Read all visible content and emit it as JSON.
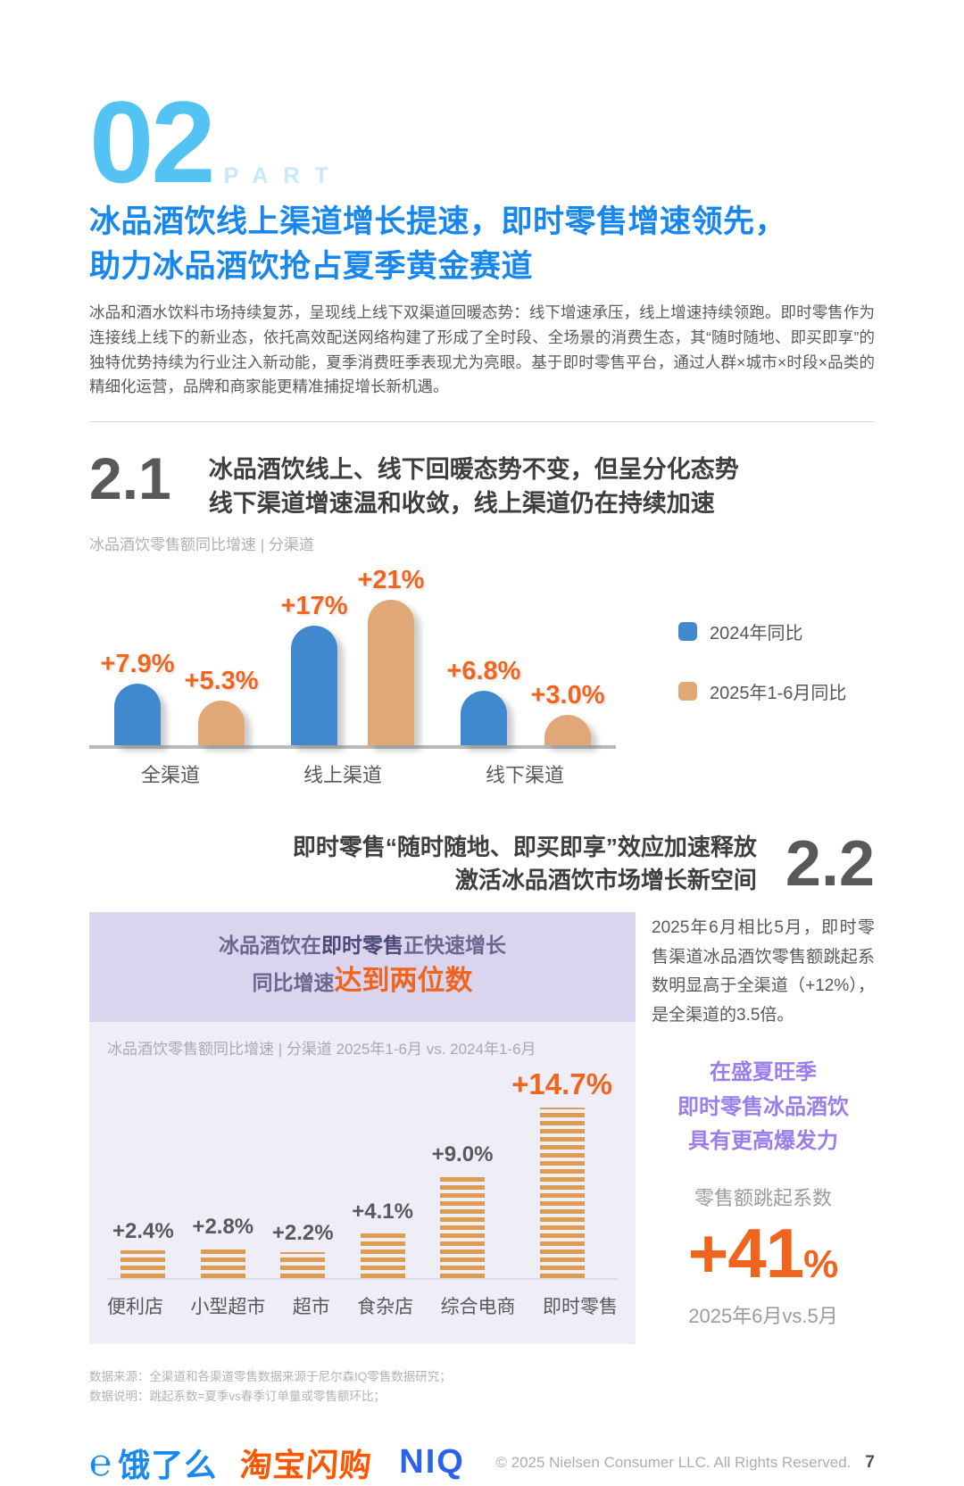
{
  "colors": {
    "part_blue": "#53C3F4",
    "part_word_blue": "#C7E9FB",
    "title_blue": "#1787F0",
    "dark_gray": "#58595B",
    "accent_orange": "#F1641E",
    "bar_blue": "#4189CE",
    "bar_tan": "#E0A876",
    "stripe_orange": "#DE9C4E",
    "panel_title_bg": "#DAD4EF",
    "panel_body_bg": "#EFEDF8",
    "panel_purple_text": "#6A6890",
    "panel_purple_dark": "#4A4878",
    "violet_text": "#9B7EEC",
    "eleme_blue": "#1789F1",
    "taobao_orange": "#FF5500",
    "niq_blue": "#2A63EB"
  },
  "header": {
    "part_number": "02",
    "part_word": "PART",
    "title_line1": "冰品酒饮线上渠道增长提速，即时零售增速领先，",
    "title_line2": "助力冰品酒饮抢占夏季黄金赛道",
    "intro": "冰品和酒水饮料市场持续复苏，呈现线上线下双渠道回暖态势：线下增速承压，线上增速持续领跑。即时零售作为连接线上线下的新业态，依托高效配送网络构建了形成了全时段、全场景的消费生态，其“随时随地、即买即享”的独特优势持续为行业注入新动能，夏季消费旺季表现尤为亮眼。基于即时零售平台，通过人群×城市×时段×品类的精细化运营，品牌和商家能更精准捕捉增长新机遇。"
  },
  "section_21": {
    "number": "2.1",
    "title_line1": "冰品酒饮线上、线下回暖态势不变，但呈分化态势",
    "title_line2": "线下渠道增速温和收敛，线上渠道仍在持续加速",
    "chart_subtitle": "冰品酒饮零售额同比增速 | 分渠道"
  },
  "section_22": {
    "number": "2.2",
    "title_line1": "即时零售“随时随地、即买即享”效应加速释放",
    "title_line2": "激活冰品酒饮市场增长新空间"
  },
  "panel": {
    "title_pre": "冰品酒饮在",
    "title_em": "即时零售",
    "title_post": "正快速增长",
    "line2_pre": "同比增速",
    "line2_em": "达到两位数",
    "subtitle": "冰品酒饮零售额同比增速 | 分渠道 2025年1-6月 vs. 2024年1-6月"
  },
  "aside": {
    "paragraph": "2025年6月相比5月，即时零售渠道冰品酒饮零售额跳起系数明显高于全渠道（+12%），是全渠道的3.5倍。",
    "highlight_line1": "在盛夏旺季",
    "highlight_line2": "即时零售冰品酒饮",
    "highlight_line3": "具有更高爆发力",
    "metric_label": "零售额跳起系数",
    "metric_value": "+41",
    "metric_unit": "%",
    "metric_caption": "2025年6月vs.5月"
  },
  "footer": {
    "note_line1": "数据来源：全渠道和各渠道零售数据来源于尼尔森IQ零售数据研究；",
    "note_line2": "数据说明：跳起系数=夏季vs春季订单量或零售额环比；",
    "eleme_label": "饿了么",
    "eleme_mark": "℮",
    "taobao_label": "淘宝闪购",
    "niq_label": "NIQ",
    "copyright": "© 2025 Nielsen Consumer LLC. All Rights Reserved.",
    "page_number": "7"
  },
  "chart_data": [
    {
      "type": "bar",
      "title": "冰品酒饮零售额同比增速 | 分渠道",
      "categories": [
        "全渠道",
        "线上渠道",
        "线下渠道"
      ],
      "series": [
        {
          "name": "2024年同比",
          "values": [
            7.9,
            17,
            6.8
          ],
          "labels": [
            "+7.9%",
            "+17%",
            "+6.8%"
          ],
          "color": "#4189CE"
        },
        {
          "name": "2025年1-6月同比",
          "values": [
            5.3,
            21,
            3.0
          ],
          "labels": [
            "+5.3%",
            "+21%",
            "+3.0%"
          ],
          "color": "#E0A876"
        }
      ],
      "legend_position": "right",
      "grid": false,
      "ylim": [
        0,
        25
      ]
    },
    {
      "type": "bar",
      "title": "冰品酒饮零售额同比增速 | 分渠道 2025年1-6月 vs. 2024年1-6月",
      "categories": [
        "便利店",
        "小型超市",
        "超市",
        "食杂店",
        "综合电商",
        "即时零售"
      ],
      "values": [
        2.4,
        2.8,
        2.2,
        4.1,
        9.0,
        14.7
      ],
      "labels": [
        "+2.4%",
        "+2.8%",
        "+2.2%",
        "+4.1%",
        "+9.0%",
        "+14.7%"
      ],
      "highlight_index": 5,
      "bar_style": "striped",
      "color": "#DE9C4E",
      "grid": false,
      "ylim": [
        0,
        16
      ]
    }
  ]
}
